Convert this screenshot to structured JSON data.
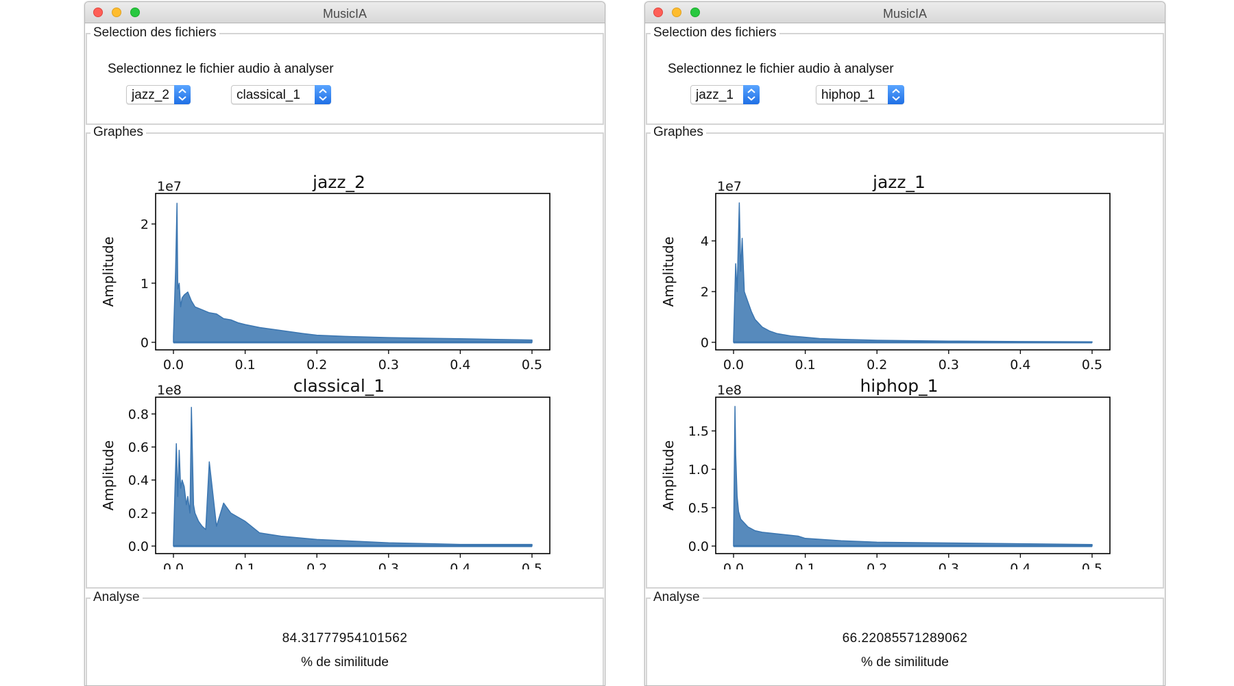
{
  "windows": [
    {
      "title": "MusicIA",
      "files_group_label": "Selection des fichiers",
      "instruction": "Selectionnez le fichier audio à analyser",
      "select_a": "jazz_2",
      "select_b": "classical_1",
      "graphs_group_label": "Graphes",
      "analyse_group_label": "Analyse",
      "similarity_value": "84.31777954101562",
      "similarity_label": "% de similitude"
    },
    {
      "title": "MusicIA",
      "files_group_label": "Selection des fichiers",
      "instruction": "Selectionnez le fichier audio à analyser",
      "select_a": "jazz_1",
      "select_b": "hiphop_1",
      "graphs_group_label": "Graphes",
      "analyse_group_label": "Analyse",
      "similarity_value": "66.22085571289062",
      "similarity_label": "% de similitude"
    }
  ],
  "colors": {
    "line": "#3a75b0",
    "close": "#fe5f57",
    "minimize": "#febc2e",
    "maximize": "#28c840",
    "select_accent": "#2a7cf0"
  },
  "chart_data": [
    {
      "type": "line",
      "title": "jazz_2",
      "ylabel": "Amplitude",
      "scale_label": "1e7",
      "xlim": [
        0,
        0.5
      ],
      "ylim": [
        0,
        2.4
      ],
      "xticks": [
        "0.0",
        "0.1",
        "0.2",
        "0.3",
        "0.4",
        "0.5"
      ],
      "yticks": [
        {
          "value": 0,
          "label": "0"
        },
        {
          "value": 1,
          "label": "1"
        },
        {
          "value": 2,
          "label": "2"
        }
      ],
      "x": [
        0.0,
        0.003,
        0.005,
        0.006,
        0.008,
        0.01,
        0.012,
        0.015,
        0.02,
        0.025,
        0.03,
        0.04,
        0.05,
        0.06,
        0.07,
        0.08,
        0.09,
        0.1,
        0.12,
        0.15,
        0.18,
        0.2,
        0.24,
        0.27,
        0.3,
        0.35,
        0.4,
        0.45,
        0.5
      ],
      "y": [
        0.1,
        1.2,
        2.35,
        0.9,
        1.0,
        0.6,
        0.75,
        0.8,
        0.85,
        0.7,
        0.6,
        0.55,
        0.5,
        0.48,
        0.4,
        0.38,
        0.33,
        0.3,
        0.25,
        0.2,
        0.15,
        0.12,
        0.1,
        0.09,
        0.08,
        0.07,
        0.06,
        0.05,
        0.04
      ]
    },
    {
      "type": "line",
      "title": "classical_1",
      "ylabel": "Amplitude",
      "scale_label": "1e8",
      "xlim": [
        0,
        0.5
      ],
      "ylim": [
        0,
        0.86
      ],
      "xticks": [
        "0.0",
        "0.1",
        "0.2",
        "0.3",
        "0.4",
        "0.5"
      ],
      "yticks": [
        {
          "value": 0,
          "label": "0.0"
        },
        {
          "value": 0.2,
          "label": "0.2"
        },
        {
          "value": 0.4,
          "label": "0.4"
        },
        {
          "value": 0.6,
          "label": "0.6"
        },
        {
          "value": 0.8,
          "label": "0.8"
        }
      ],
      "x": [
        0.0,
        0.004,
        0.006,
        0.008,
        0.01,
        0.012,
        0.015,
        0.018,
        0.02,
        0.023,
        0.025,
        0.028,
        0.03,
        0.035,
        0.04,
        0.045,
        0.05,
        0.06,
        0.07,
        0.08,
        0.1,
        0.12,
        0.15,
        0.2,
        0.3,
        0.4,
        0.5
      ],
      "y": [
        0.02,
        0.62,
        0.3,
        0.58,
        0.35,
        0.4,
        0.36,
        0.25,
        0.3,
        0.2,
        0.84,
        0.25,
        0.2,
        0.15,
        0.12,
        0.1,
        0.51,
        0.12,
        0.26,
        0.2,
        0.15,
        0.08,
        0.06,
        0.04,
        0.02,
        0.01,
        0.01
      ]
    },
    {
      "type": "line",
      "title": "jazz_1",
      "ylabel": "Amplitude",
      "scale_label": "1e7",
      "xlim": [
        0,
        0.5
      ],
      "ylim": [
        0,
        5.6
      ],
      "xticks": [
        "0.0",
        "0.1",
        "0.2",
        "0.3",
        "0.4",
        "0.5"
      ],
      "yticks": [
        {
          "value": 0,
          "label": "0"
        },
        {
          "value": 2,
          "label": "2"
        },
        {
          "value": 4,
          "label": "4"
        }
      ],
      "x": [
        0.0,
        0.003,
        0.005,
        0.008,
        0.01,
        0.012,
        0.015,
        0.02,
        0.025,
        0.03,
        0.04,
        0.05,
        0.06,
        0.08,
        0.1,
        0.12,
        0.15,
        0.2,
        0.3,
        0.4,
        0.5
      ],
      "y": [
        0.1,
        3.1,
        2.0,
        5.5,
        2.8,
        4.1,
        2.0,
        1.6,
        1.2,
        0.9,
        0.6,
        0.45,
        0.35,
        0.25,
        0.2,
        0.15,
        0.12,
        0.08,
        0.05,
        0.03,
        0.02
      ]
    },
    {
      "type": "line",
      "title": "hiphop_1",
      "ylabel": "Amplitude",
      "scale_label": "1e8",
      "xlim": [
        0,
        0.5
      ],
      "ylim": [
        0,
        1.85
      ],
      "xticks": [
        "0.0",
        "0.1",
        "0.2",
        "0.3",
        "0.4",
        "0.5"
      ],
      "yticks": [
        {
          "value": 0,
          "label": "0.0"
        },
        {
          "value": 0.5,
          "label": "0.5"
        },
        {
          "value": 1.0,
          "label": "1.0"
        },
        {
          "value": 1.5,
          "label": "1.5"
        }
      ],
      "x": [
        0.0,
        0.002,
        0.003,
        0.005,
        0.007,
        0.01,
        0.015,
        0.02,
        0.03,
        0.04,
        0.05,
        0.07,
        0.09,
        0.1,
        0.15,
        0.2,
        0.3,
        0.4,
        0.5
      ],
      "y": [
        0.05,
        1.82,
        1.2,
        0.65,
        0.45,
        0.35,
        0.3,
        0.25,
        0.2,
        0.18,
        0.17,
        0.15,
        0.13,
        0.1,
        0.07,
        0.05,
        0.04,
        0.03,
        0.02
      ]
    }
  ]
}
